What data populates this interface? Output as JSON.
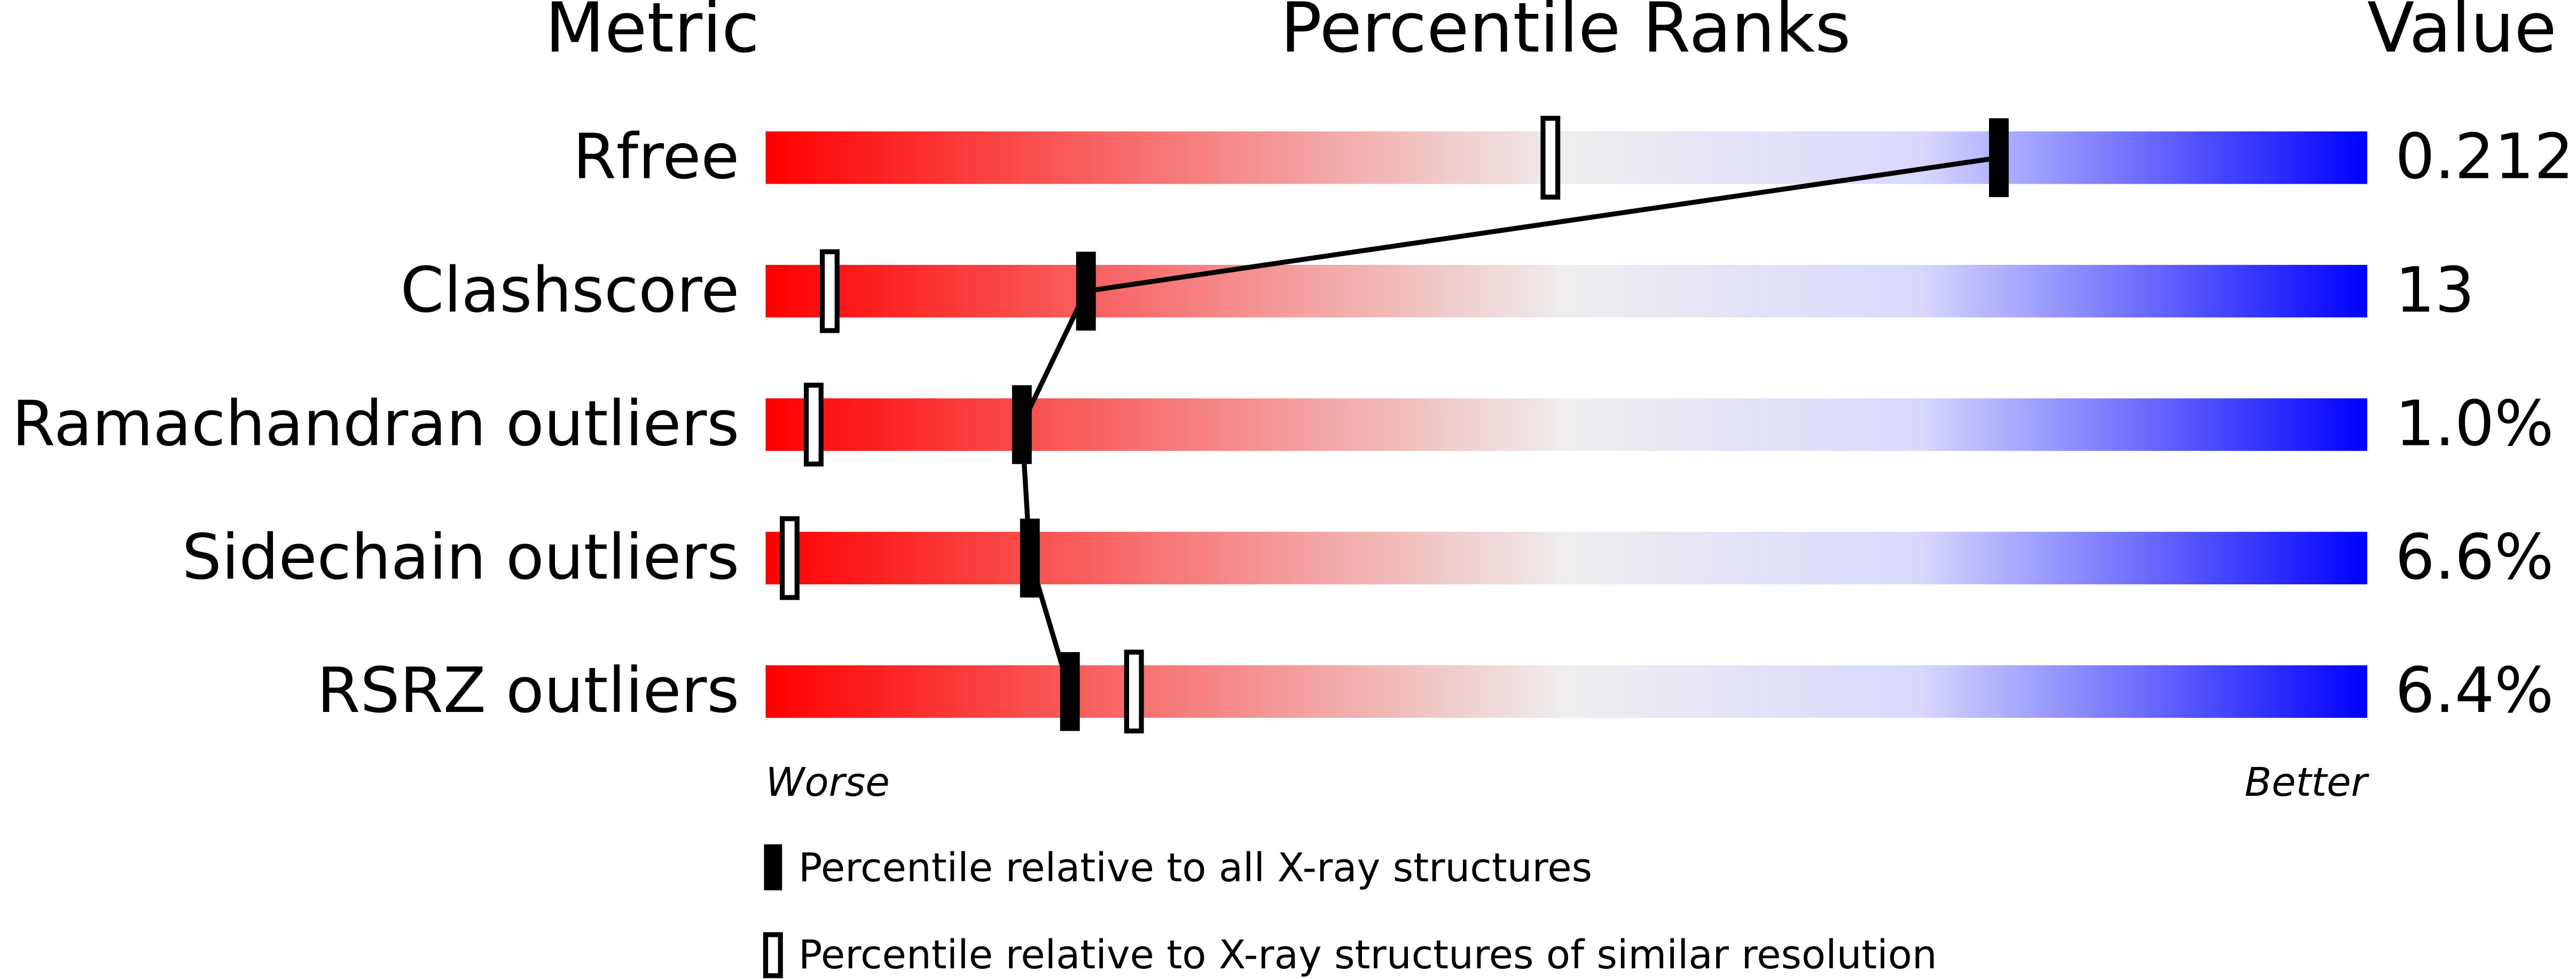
{
  "chart_data": {
    "type": "percentile-slider",
    "headers": {
      "metric": "Metric",
      "ranks": "Percentile Ranks",
      "value": "Value"
    },
    "categories": [
      "Rfree",
      "Clashscore",
      "Ramachandran outliers",
      "Sidechain outliers",
      "RSRZ outliers"
    ],
    "metric_values": [
      "0.212",
      "13",
      "1.0%",
      "6.6%",
      "6.4%"
    ],
    "series": [
      {
        "name": "Percentile relative to all X-ray structures",
        "style": "filled",
        "color": "#000000",
        "values": [
          77,
          20,
          16,
          16.5,
          19
        ]
      },
      {
        "name": "Percentile relative to X-ray structures of similar resolution",
        "style": "open",
        "color": "#000000",
        "values": [
          49,
          4,
          3,
          1.5,
          23
        ]
      }
    ],
    "xlim": [
      0,
      100
    ],
    "x_left_label": "Worse",
    "x_right_label": "Better",
    "gradient": [
      "#ff0000",
      "#eeeeee",
      "#0000ff"
    ]
  }
}
